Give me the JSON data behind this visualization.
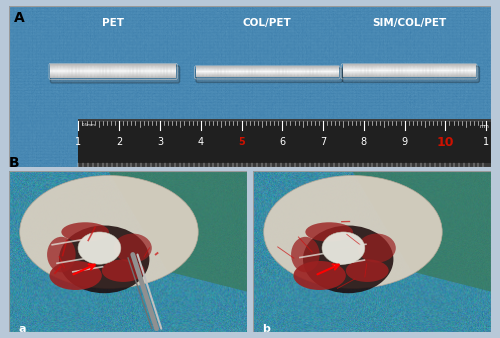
{
  "figure_width": 5.0,
  "figure_height": 3.38,
  "dpi": 100,
  "panel_A_label": "A",
  "panel_B_label": "B",
  "panel_A_sublabels": [
    "PET",
    "COL/PET",
    "SIM/COL/PET"
  ],
  "panel_B_sublabels": [
    "a",
    "b"
  ],
  "label_color_white": "#ffffff",
  "label_color_black": "#000000",
  "bg_color_A": "#4a8ab5",
  "ruler_color": "#252525",
  "ruler_text_color": "#ffffff",
  "ruler_text_color_red": "#cc1100",
  "ruler_numbers": [
    "1",
    "2",
    "3",
    "4",
    "5",
    "6",
    "7",
    "8",
    "9",
    "10",
    "1"
  ],
  "graft_color": "#f2f2f2",
  "border_color": "#b8c8d8",
  "outer_border_color": "#888888",
  "panel_B_bg": "#5090b0",
  "sublabel_fontsize": 8,
  "panel_label_fontsize": 10
}
